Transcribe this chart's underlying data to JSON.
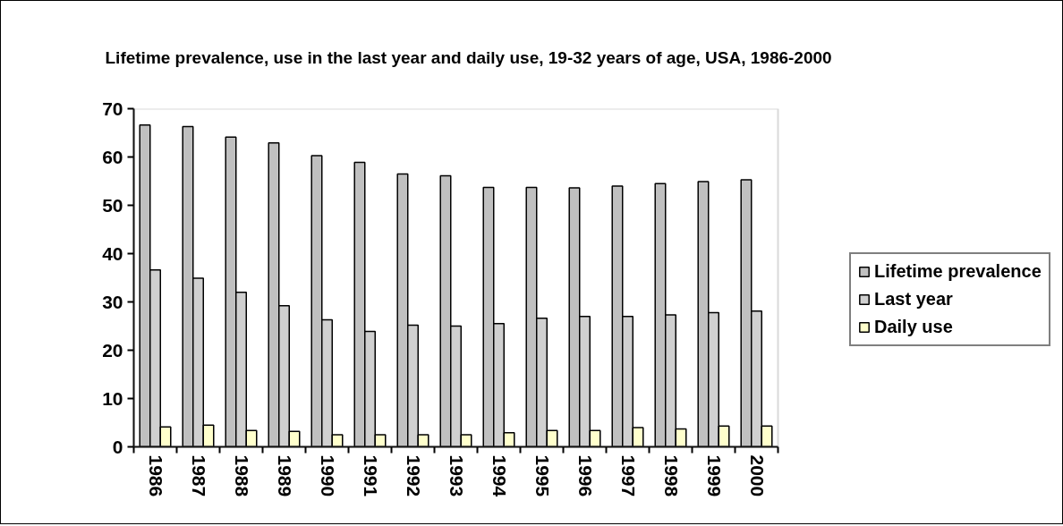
{
  "chart_data": {
    "type": "bar",
    "title": "Lifetime prevalence, use in the last year and daily use, 19-32 years of age, USA, 1986-2000",
    "categories": [
      "1986",
      "1987",
      "1988",
      "1989",
      "1990",
      "1991",
      "1992",
      "1993",
      "1994",
      "1995",
      "1996",
      "1997",
      "1998",
      "1999",
      "2000"
    ],
    "series": [
      {
        "name": "Lifetime prevalence",
        "color": "#c0c0c0",
        "values": [
          66.6,
          66.3,
          64.1,
          62.9,
          60.3,
          58.9,
          56.5,
          56.1,
          53.7,
          53.7,
          53.6,
          54.0,
          54.5,
          54.9,
          55.3
        ]
      },
      {
        "name": "Last year",
        "color": "#d0d0d0",
        "values": [
          36.6,
          34.9,
          32.0,
          29.2,
          26.3,
          23.9,
          25.2,
          25.0,
          25.5,
          26.6,
          27.0,
          27.0,
          27.3,
          27.8,
          28.1
        ]
      },
      {
        "name": "Daily use",
        "color": "#ffffcc",
        "values": [
          4.1,
          4.5,
          3.4,
          3.2,
          2.5,
          2.5,
          2.5,
          2.5,
          2.9,
          3.4,
          3.4,
          4.0,
          3.7,
          4.3,
          4.3
        ]
      }
    ],
    "ylim": [
      0,
      70
    ],
    "yticks": [
      0,
      10,
      20,
      30,
      40,
      50,
      60,
      70
    ],
    "legend": "right"
  }
}
